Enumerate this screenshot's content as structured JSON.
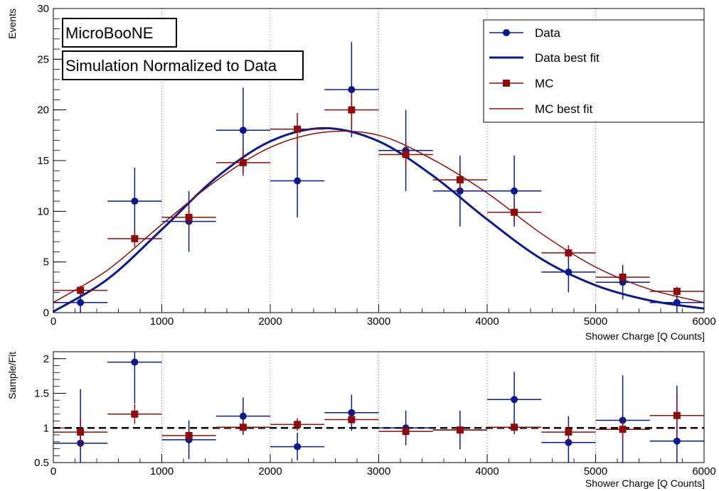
{
  "chart_data": [
    {
      "type": "scatter",
      "panel": "main",
      "xlabel": "Shower Charge [Q Counts]",
      "ylabel": "Events",
      "xlim": [
        0,
        6000
      ],
      "ylim": [
        0,
        30
      ],
      "xticks": [
        "0",
        "1000",
        "2000",
        "3000",
        "4000",
        "5000",
        "6000"
      ],
      "yticks": [
        "0",
        "5",
        "10",
        "15",
        "20",
        "25",
        "30"
      ],
      "grid": "vertical dotted",
      "annotations": [
        "MicroBooNE",
        "Simulation Normalized to Data"
      ],
      "legend": {
        "placement": "top-right",
        "entries": [
          "Data",
          "Data best fit",
          "MC",
          "MC best fit"
        ]
      },
      "bin_half_width": 250,
      "series": [
        {
          "name": "Data",
          "style": "points",
          "marker": "circle",
          "color": "#0a1a8c",
          "x": [
            250,
            750,
            1250,
            1750,
            2250,
            2750,
            3250,
            3750,
            4250,
            4750,
            5250,
            5750
          ],
          "y": [
            1,
            11,
            9,
            18,
            13,
            22,
            16,
            12,
            12,
            4,
            3,
            1
          ],
          "yerr": [
            1,
            3.3,
            3,
            4.2,
            3.6,
            4.7,
            4,
            3.5,
            3.5,
            2,
            1.7,
            1
          ]
        },
        {
          "name": "MC",
          "style": "points",
          "marker": "square",
          "color": "#8b0d0d",
          "x": [
            250,
            750,
            1250,
            1750,
            2250,
            2750,
            3250,
            3750,
            4250,
            4750,
            5250,
            5750
          ],
          "y": [
            2.2,
            7.3,
            9.4,
            14.8,
            18.1,
            20,
            15.6,
            13.1,
            9.9,
            5.9,
            3.5,
            2.1
          ],
          "yerr": [
            0.45,
            0.8,
            0.95,
            1.3,
            1.6,
            1.6,
            1.3,
            1.1,
            0.95,
            0.75,
            0.55,
            0.45
          ]
        },
        {
          "name": "Data best fit",
          "style": "line",
          "color": "#0a1a8c",
          "width": 3,
          "x": [
            0,
            500,
            1000,
            1500,
            2000,
            2500,
            3000,
            3500,
            4000,
            4500,
            5000,
            5500,
            6000
          ],
          "y": [
            0.1,
            3.3,
            8.2,
            13.3,
            16.9,
            18.2,
            16.9,
            13.5,
            9.2,
            5.3,
            2.7,
            1.2,
            0.4
          ]
        },
        {
          "name": "MC best fit",
          "style": "line",
          "color": "#8b0d0d",
          "width": 1.5,
          "x": [
            0,
            500,
            1000,
            1500,
            2000,
            2500,
            3000,
            3500,
            4000,
            4500,
            5000,
            5500,
            6000
          ],
          "y": [
            1.0,
            4.2,
            8.7,
            13.0,
            16.3,
            17.8,
            17.5,
            15.1,
            11.8,
            7.8,
            4.5,
            2.3,
            1.0
          ]
        }
      ]
    },
    {
      "type": "scatter",
      "panel": "ratio",
      "xlabel": "Shower Charge [Q Counts]",
      "ylabel": "Sample/Fit",
      "xlim": [
        0,
        6000
      ],
      "ylim": [
        0.5,
        2.1
      ],
      "xticks": [
        "0",
        "1000",
        "2000",
        "3000",
        "4000",
        "5000",
        "6000"
      ],
      "yticks": [
        "0.5",
        "1",
        "1.5",
        "2"
      ],
      "grid": "vertical dotted",
      "reference_line": 1,
      "bin_half_width": 250,
      "series": [
        {
          "name": "Data",
          "marker": "circle",
          "color": "#0a1a8c",
          "x": [
            250,
            750,
            1250,
            1750,
            2250,
            2750,
            3250,
            3750,
            4250,
            4750,
            5250,
            5750
          ],
          "y": [
            0.78,
            1.95,
            0.83,
            1.17,
            0.73,
            1.22,
            1.0,
            0.97,
            1.41,
            0.79,
            1.11,
            0.81
          ],
          "yerr": [
            0.78,
            0.6,
            0.28,
            0.27,
            0.2,
            0.26,
            0.25,
            0.28,
            0.4,
            0.38,
            0.65,
            0.8
          ]
        },
        {
          "name": "MC",
          "marker": "square",
          "color": "#8b0d0d",
          "x": [
            250,
            750,
            1250,
            1750,
            2250,
            2750,
            3250,
            3750,
            4250,
            4750,
            5250,
            5750
          ],
          "y": [
            0.94,
            1.2,
            0.89,
            1.01,
            1.05,
            1.12,
            0.95,
            0.97,
            1.01,
            0.94,
            0.98,
            1.18
          ],
          "yerr": [
            0.22,
            0.14,
            0.09,
            0.08,
            0.09,
            0.08,
            0.08,
            0.08,
            0.1,
            0.12,
            0.16,
            0.32
          ]
        }
      ]
    }
  ]
}
